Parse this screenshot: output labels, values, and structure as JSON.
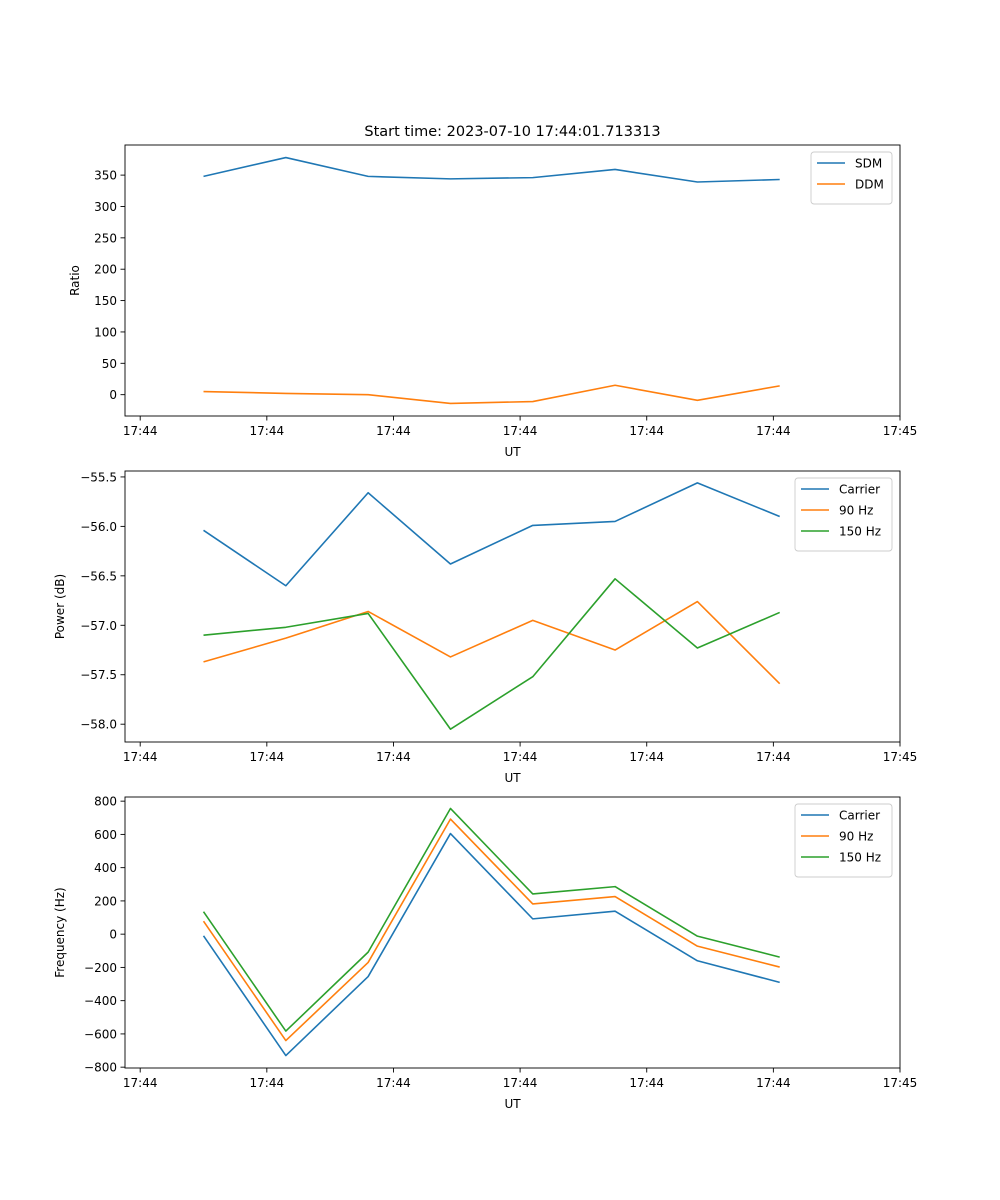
{
  "figure": {
    "title": "Start time: 2023-07-10 17:44:01.713313"
  },
  "chart_data": [
    {
      "type": "line",
      "title": "Start time: 2023-07-10 17:44:01.713313",
      "xlabel": "UT",
      "ylabel": "Ratio",
      "x_tick_labels": [
        "17:44",
        "17:44",
        "17:44",
        "17:44",
        "17:44",
        "17:44",
        "17:45"
      ],
      "x_tick_positions": [
        0,
        1,
        2,
        3,
        4,
        5,
        6
      ],
      "xlim": [
        -0.12,
        6.0
      ],
      "ylim": [
        -34,
        398
      ],
      "y_ticks": [
        0,
        50,
        100,
        150,
        200,
        250,
        300,
        350
      ],
      "legend": "top-right",
      "x": [
        0.5,
        1.15,
        1.8,
        2.45,
        3.1,
        3.75,
        4.4,
        5.05
      ],
      "series": [
        {
          "name": "SDM",
          "color": "#1f77b4",
          "values": [
            348,
            378,
            348,
            344,
            346,
            359,
            339,
            343
          ]
        },
        {
          "name": "DDM",
          "color": "#ff7f0e",
          "values": [
            5,
            2,
            0,
            -14,
            -11,
            15,
            -9,
            14
          ]
        }
      ]
    },
    {
      "type": "line",
      "title": "",
      "xlabel": "UT",
      "ylabel": "Power (dB)",
      "x_tick_labels": [
        "17:44",
        "17:44",
        "17:44",
        "17:44",
        "17:44",
        "17:44",
        "17:45"
      ],
      "x_tick_positions": [
        0,
        1,
        2,
        3,
        4,
        5,
        6
      ],
      "xlim": [
        -0.12,
        6.0
      ],
      "ylim": [
        -58.18,
        -55.44
      ],
      "y_ticks": [
        -58.0,
        -57.5,
        -57.0,
        -56.5,
        -56.0,
        -55.5
      ],
      "y_tick_labels": [
        "−58.0",
        "−57.5",
        "−57.0",
        "−56.5",
        "−56.0",
        "−55.5"
      ],
      "legend": "top-right",
      "x": [
        0.5,
        1.15,
        1.8,
        2.45,
        3.1,
        3.75,
        4.4,
        5.05
      ],
      "series": [
        {
          "name": "Carrier",
          "color": "#1f77b4",
          "values": [
            -56.04,
            -56.6,
            -55.66,
            -56.38,
            -55.99,
            -55.95,
            -55.56,
            -55.9
          ]
        },
        {
          "name": "90 Hz",
          "color": "#ff7f0e",
          "values": [
            -57.37,
            -57.13,
            -56.86,
            -57.32,
            -56.95,
            -57.25,
            -56.76,
            -57.59
          ]
        },
        {
          "name": "150 Hz",
          "color": "#2ca02c",
          "values": [
            -57.1,
            -57.02,
            -56.88,
            -58.05,
            -57.52,
            -56.53,
            -57.23,
            -56.87
          ]
        }
      ]
    },
    {
      "type": "line",
      "title": "",
      "xlabel": "UT",
      "ylabel": "Frequency (Hz)",
      "x_tick_labels": [
        "17:44",
        "17:44",
        "17:44",
        "17:44",
        "17:44",
        "17:44",
        "17:45"
      ],
      "x_tick_positions": [
        0,
        1,
        2,
        3,
        4,
        5,
        6
      ],
      "xlim": [
        -0.12,
        6.0
      ],
      "ylim": [
        -805,
        825
      ],
      "y_ticks": [
        -800,
        -600,
        -400,
        -200,
        0,
        200,
        400,
        600,
        800
      ],
      "y_tick_labels": [
        "−800",
        "−600",
        "−400",
        "−200",
        "0",
        "200",
        "400",
        "600",
        "800"
      ],
      "legend": "top-right",
      "x": [
        0.5,
        1.15,
        1.8,
        2.45,
        3.1,
        3.75,
        4.4,
        5.05
      ],
      "series": [
        {
          "name": "Carrier",
          "color": "#1f77b4",
          "values": [
            -10,
            -730,
            -255,
            605,
            92,
            138,
            -160,
            -290
          ]
        },
        {
          "name": "90 Hz",
          "color": "#ff7f0e",
          "values": [
            78,
            -640,
            -170,
            692,
            182,
            226,
            -72,
            -198
          ]
        },
        {
          "name": "150 Hz",
          "color": "#2ca02c",
          "values": [
            135,
            -583,
            -108,
            756,
            242,
            286,
            -12,
            -138
          ]
        }
      ]
    }
  ]
}
